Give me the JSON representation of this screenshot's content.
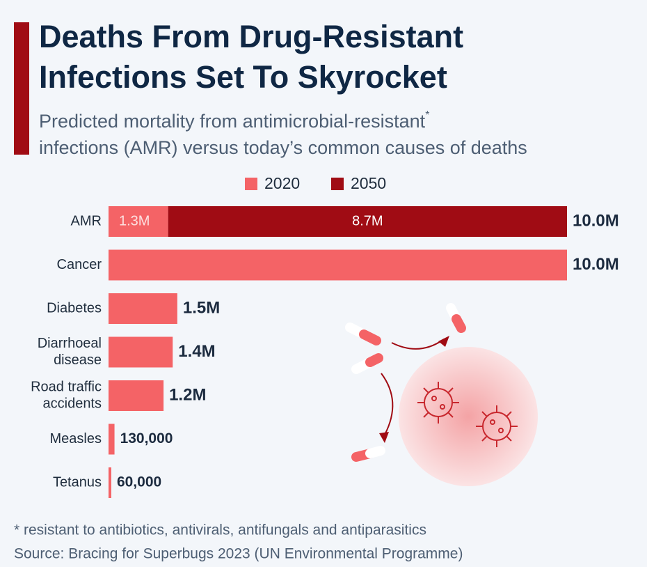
{
  "chart_data": {
    "type": "stacked_bar_horizontal",
    "title": [
      "Deaths From Drug-Resistant",
      "Infections Set To Skyrocket"
    ],
    "subtitle": [
      "Predicted mortality from antimicrobial-resistant",
      "infections (AMR) versus today’s common causes of deaths"
    ],
    "subtitle_marker": "*",
    "categories": [
      [
        "AMR"
      ],
      [
        "Cancer"
      ],
      [
        "Diabetes"
      ],
      [
        "Diarrhoeal",
        "disease"
      ],
      [
        "Road traffic",
        "accidents"
      ],
      [
        "Measles"
      ],
      [
        "Tetanus"
      ]
    ],
    "series": [
      {
        "name": "2020",
        "color": "#f46366",
        "values": [
          1300000,
          10000000,
          1500000,
          1400000,
          1200000,
          130000,
          60000
        ],
        "value_labels": [
          "1.3M",
          null,
          null,
          null,
          null,
          null,
          null
        ]
      },
      {
        "name": "2050",
        "color": "#a00c14",
        "values": [
          8700000,
          null,
          null,
          null,
          null,
          null,
          null
        ],
        "value_labels": [
          "8.7M",
          null,
          null,
          null,
          null,
          null,
          null
        ]
      }
    ],
    "totals": [
      10000000,
      10000000,
      1500000,
      1400000,
      1200000,
      130000,
      60000
    ],
    "total_labels": [
      "10.0M",
      "10.0M",
      "1.5M",
      "1.4M",
      "1.2M",
      "130,000",
      "60,000"
    ],
    "footnote": "* resistant to antibiotics, antivirals, antifungals and antiparasitics",
    "source": "Source: Bracing for Superbugs 2023 (UN Environmental Programme)"
  }
}
